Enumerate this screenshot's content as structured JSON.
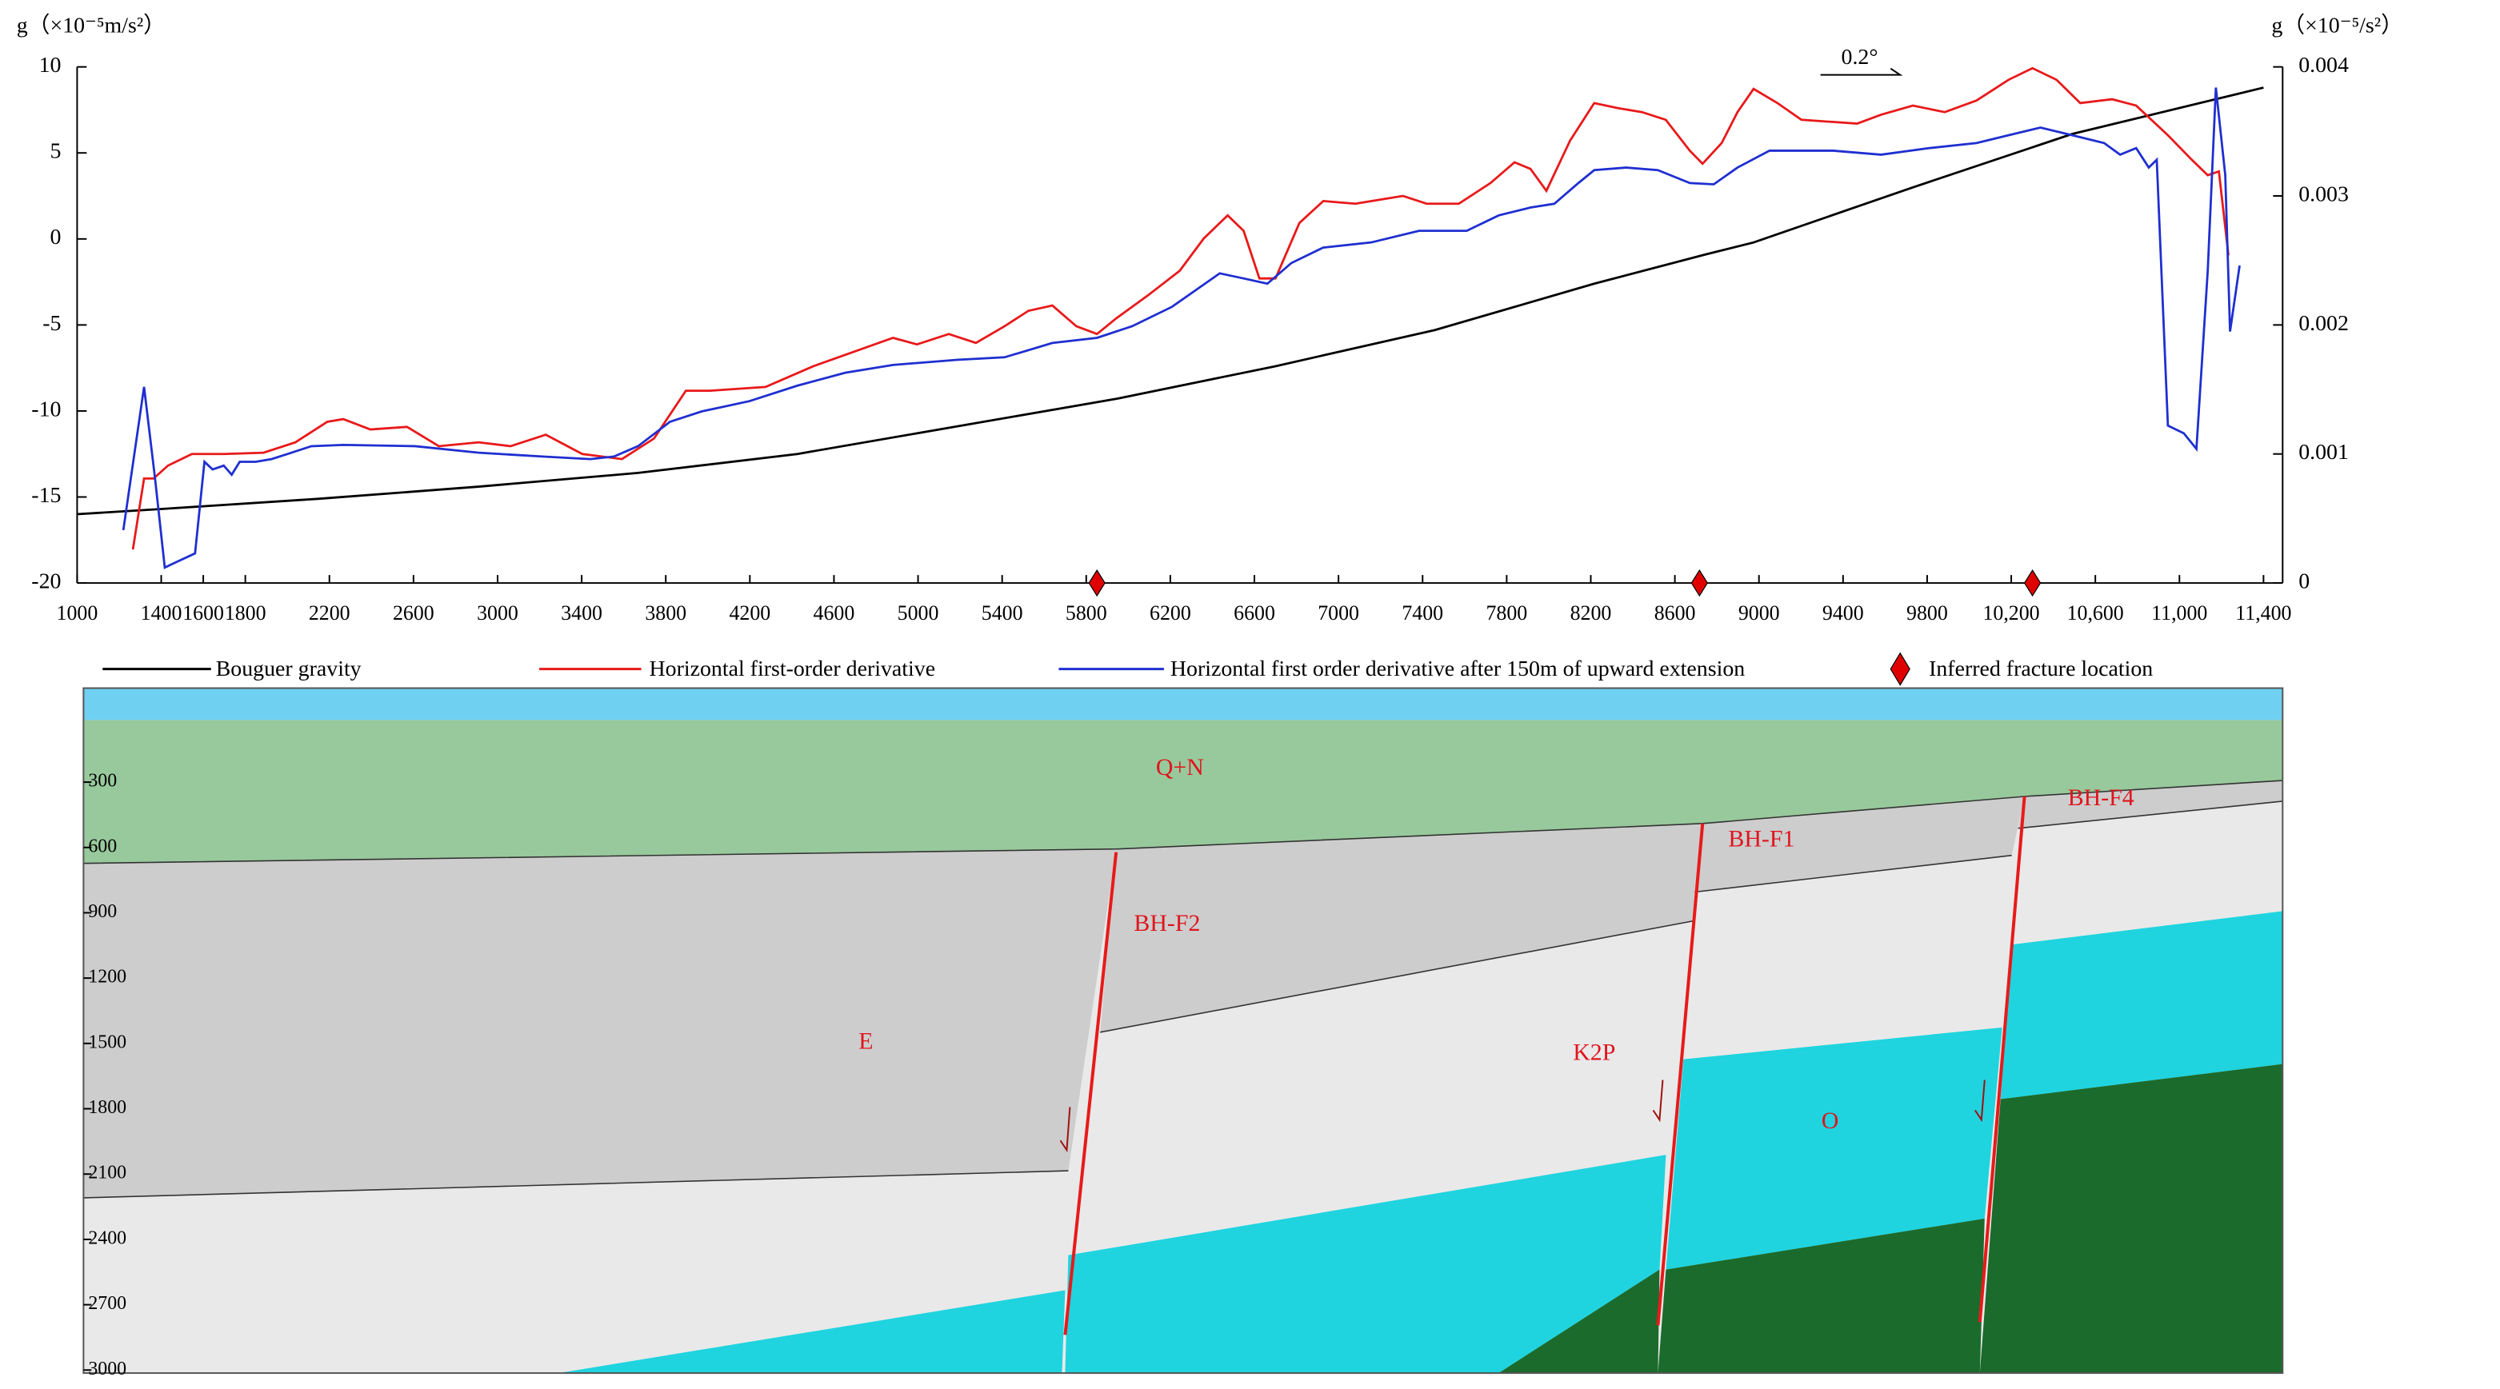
{
  "chart_data": {
    "type": "line",
    "y_label": "g（×10⁻⁵m/s²）",
    "y2_label": "g（×10⁻⁵/s²）",
    "annotation": "0.2°",
    "xlim": [
      1000,
      11400
    ],
    "xticks": [
      1000,
      1400,
      1600,
      1800,
      2200,
      2600,
      3000,
      3400,
      3800,
      4200,
      4600,
      5000,
      5400,
      5800,
      6200,
      6600,
      7000,
      7400,
      7800,
      8200,
      8600,
      9000,
      9400,
      9800,
      {
        "value": 10200,
        "label": "10,200"
      },
      {
        "value": 10600,
        "label": "10,600"
      },
      {
        "value": 11000,
        "label": "11,000"
      },
      {
        "value": 11400,
        "label": "11,400"
      }
    ],
    "ylim": [
      -20,
      10
    ],
    "yticks": [
      10,
      5,
      0,
      -5,
      -10,
      -15,
      -20
    ],
    "y2lim": [
      0,
      0.004
    ],
    "y2ticks": [
      0.004,
      0.003,
      0.002,
      0.001,
      0
    ],
    "series": [
      {
        "name": "Bouguer gravity",
        "color": "#000000",
        "x": [
          1000,
          1394,
          2152,
          2910,
          3668,
          4426,
          5184,
          5942,
          6700,
          7458,
          8216,
          8747,
          8974,
          9732,
          10490,
          11400
        ],
        "values": [
          -16.0,
          -15.7,
          -15.1,
          -14.4,
          -13.6,
          -12.5,
          -10.9,
          -9.3,
          -7.4,
          -5.3,
          -2.6,
          -0.9,
          -0.2,
          3.0,
          6.1,
          8.8
        ]
      },
      {
        "name": "Horizontal first-order derivative",
        "color": "#e8191a",
        "axis": "y2",
        "x": [
          1265,
          1318,
          1364,
          1432,
          1546,
          1697,
          1887,
          2038,
          2190,
          2266,
          2395,
          2569,
          2721,
          2910,
          3062,
          3229,
          3403,
          3592,
          3744,
          3896,
          4009,
          4275,
          4502,
          4881,
          4995,
          5146,
          5275,
          5412,
          5525,
          5639,
          5753,
          5851,
          5942,
          6094,
          6245,
          6359,
          6473,
          6549,
          6624,
          6700,
          6814,
          6928,
          7080,
          7231,
          7307,
          7420,
          7572,
          7723,
          7837,
          7913,
          7989,
          8102,
          8216,
          8330,
          8444,
          8557,
          8671,
          8732,
          8823,
          8898,
          8974,
          9088,
          9202,
          9467,
          9581,
          9732,
          9884,
          10035,
          10187,
          10301,
          10415,
          10528,
          10680,
          10794,
          10945,
          11059,
          11135,
          11188,
          11233
        ],
        "values": [
          0.00026,
          0.00081,
          0.00081,
          0.00091,
          0.001,
          0.001,
          0.00101,
          0.00109,
          0.00125,
          0.00127,
          0.00119,
          0.00121,
          0.00106,
          0.00109,
          0.00106,
          0.00115,
          0.001,
          0.00096,
          0.00112,
          0.00149,
          0.00149,
          0.00152,
          0.00168,
          0.0019,
          0.00185,
          0.00193,
          0.00186,
          0.00199,
          0.00211,
          0.00215,
          0.00199,
          0.00193,
          0.00205,
          0.00223,
          0.00242,
          0.00267,
          0.00285,
          0.00273,
          0.00236,
          0.00236,
          0.00279,
          0.00296,
          0.00294,
          0.00298,
          0.003,
          0.00294,
          0.00294,
          0.0031,
          0.00326,
          0.00321,
          0.00304,
          0.00343,
          0.00372,
          0.00368,
          0.00365,
          0.00359,
          0.00335,
          0.00325,
          0.00341,
          0.00365,
          0.00383,
          0.00372,
          0.00359,
          0.00356,
          0.00363,
          0.0037,
          0.00365,
          0.00374,
          0.0039,
          0.00399,
          0.0039,
          0.00372,
          0.00375,
          0.0037,
          0.00347,
          0.00328,
          0.00316,
          0.00319,
          0.00254
        ]
      },
      {
        "name": "Horizontal first order derivative after 150m of upward extension",
        "color": "#1f2fd0",
        "axis": "y2",
        "x": [
          1220,
          1318,
          1371,
          1417,
          1470,
          1561,
          1606,
          1644,
          1697,
          1735,
          1773,
          1849,
          1925,
          2001,
          2114,
          2266,
          2607,
          2910,
          3213,
          3441,
          3554,
          3668,
          3820,
          3971,
          4199,
          4426,
          4654,
          4881,
          5184,
          5412,
          5639,
          5851,
          6018,
          6207,
          6435,
          6549,
          6662,
          6776,
          6928,
          7155,
          7383,
          7610,
          7762,
          7913,
          8027,
          8141,
          8216,
          8368,
          8519,
          8671,
          8785,
          8898,
          9050,
          9353,
          9581,
          9808,
          10035,
          10187,
          10339,
          10490,
          10642,
          10718,
          10794,
          10854,
          10892,
          10945,
          11021,
          11081,
          11135,
          11173,
          11218,
          11241,
          11286
        ],
        "values": [
          0.00041,
          0.00152,
          0.00081,
          0.00012,
          0.00016,
          0.00023,
          0.00094,
          0.00088,
          0.00091,
          0.00084,
          0.00094,
          0.00094,
          0.00096,
          0.001,
          0.00106,
          0.00107,
          0.00106,
          0.00101,
          0.00098,
          0.00096,
          0.00098,
          0.00106,
          0.00125,
          0.00133,
          0.00141,
          0.00153,
          0.00163,
          0.00169,
          0.00173,
          0.00175,
          0.00186,
          0.0019,
          0.00199,
          0.00214,
          0.0024,
          0.00236,
          0.00232,
          0.00248,
          0.0026,
          0.00264,
          0.00273,
          0.00273,
          0.00285,
          0.00291,
          0.00294,
          0.0031,
          0.0032,
          0.00322,
          0.0032,
          0.0031,
          0.00309,
          0.00322,
          0.00335,
          0.00335,
          0.00332,
          0.00337,
          0.00341,
          0.00347,
          0.00353,
          0.00347,
          0.00341,
          0.00332,
          0.00337,
          0.00322,
          0.00328,
          0.00122,
          0.00116,
          0.00104,
          0.00242,
          0.00384,
          0.00316,
          0.00195,
          0.00246
        ]
      }
    ],
    "markers": {
      "name": "Inferred fracture location",
      "color": "#e00000",
      "x": [
        5851,
        8717,
        10301
      ]
    }
  },
  "section": {
    "depth_ticks": [
      300,
      600,
      900,
      1200,
      1500,
      1800,
      2100,
      2400,
      2700,
      3000
    ],
    "layers": [
      "Q+N",
      "E",
      "K2P",
      "O"
    ],
    "faults": [
      "BH-F2",
      "BH-F1",
      "BH-F4"
    ]
  }
}
